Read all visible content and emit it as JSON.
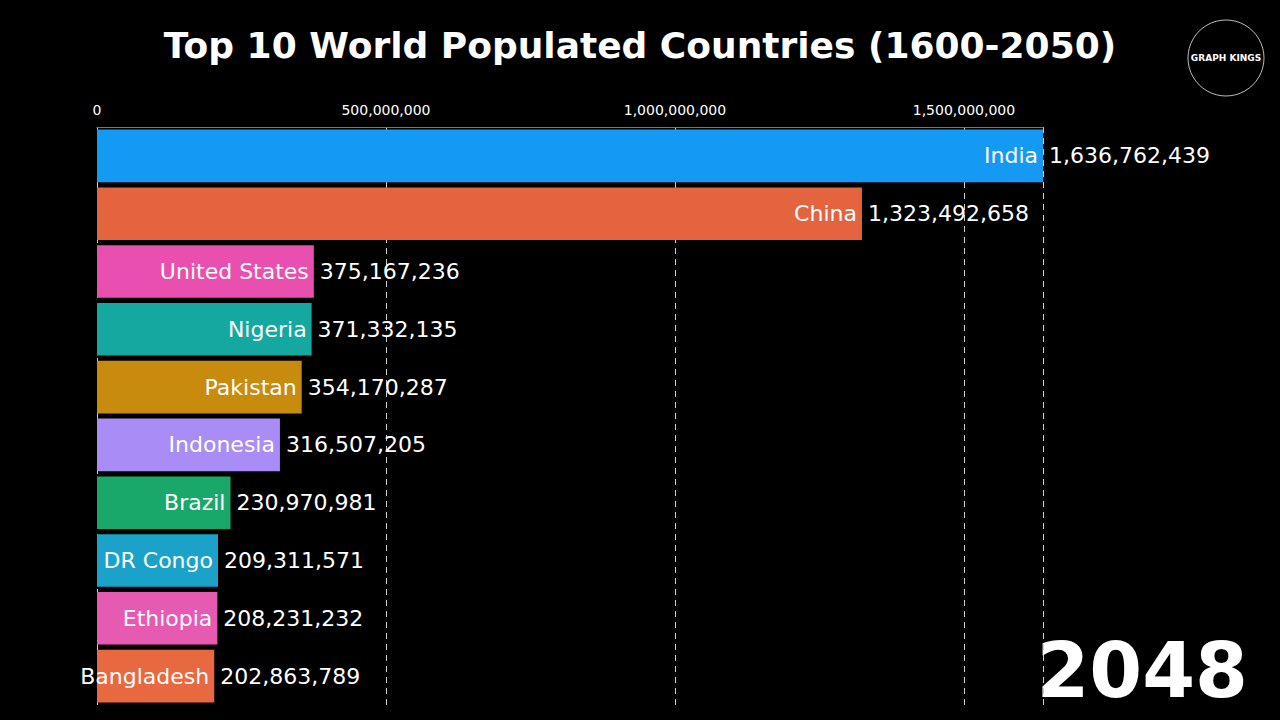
{
  "chart_data": {
    "type": "bar",
    "title": "Top 10 World Populated Countries (1600-2050)",
    "orientation": "horizontal",
    "categories": [
      "India",
      "China",
      "United States",
      "Nigeria",
      "Pakistan",
      "Indonesia",
      "Brazil",
      "DR Congo",
      "Ethiopia",
      "Bangladesh"
    ],
    "values": [
      1636762439,
      1323492658,
      375167236,
      371332135,
      354170287,
      316507205,
      230970981,
      209311571,
      208231232,
      202863789
    ],
    "value_labels": [
      "1,636,762,439",
      "1,323,492,658",
      "375,167,236",
      "371,332,135",
      "354,170,287",
      "316,507,205",
      "230,970,981",
      "209,311,571",
      "208,231,232",
      "202,863,789"
    ],
    "colors": [
      "#159af4",
      "#e4643f",
      "#e94fae",
      "#14a8a0",
      "#c98b0e",
      "#a98cf6",
      "#1aa86a",
      "#1ba2c8",
      "#e75ab2",
      "#e8683f"
    ],
    "xlim": [
      0,
      1636762439
    ],
    "xticks": [
      0,
      {
        "value": 500000000,
        "label": "500,000,000"
      },
      {
        "value": 1000000000,
        "label": "1,000,000,000"
      },
      {
        "value": 1500000000,
        "label": "1,500,000,000"
      }
    ],
    "grid": true,
    "data_labels": true,
    "tick_labels": "x",
    "annotations": [
      "2048",
      "GRAPH KINGS"
    ]
  }
}
